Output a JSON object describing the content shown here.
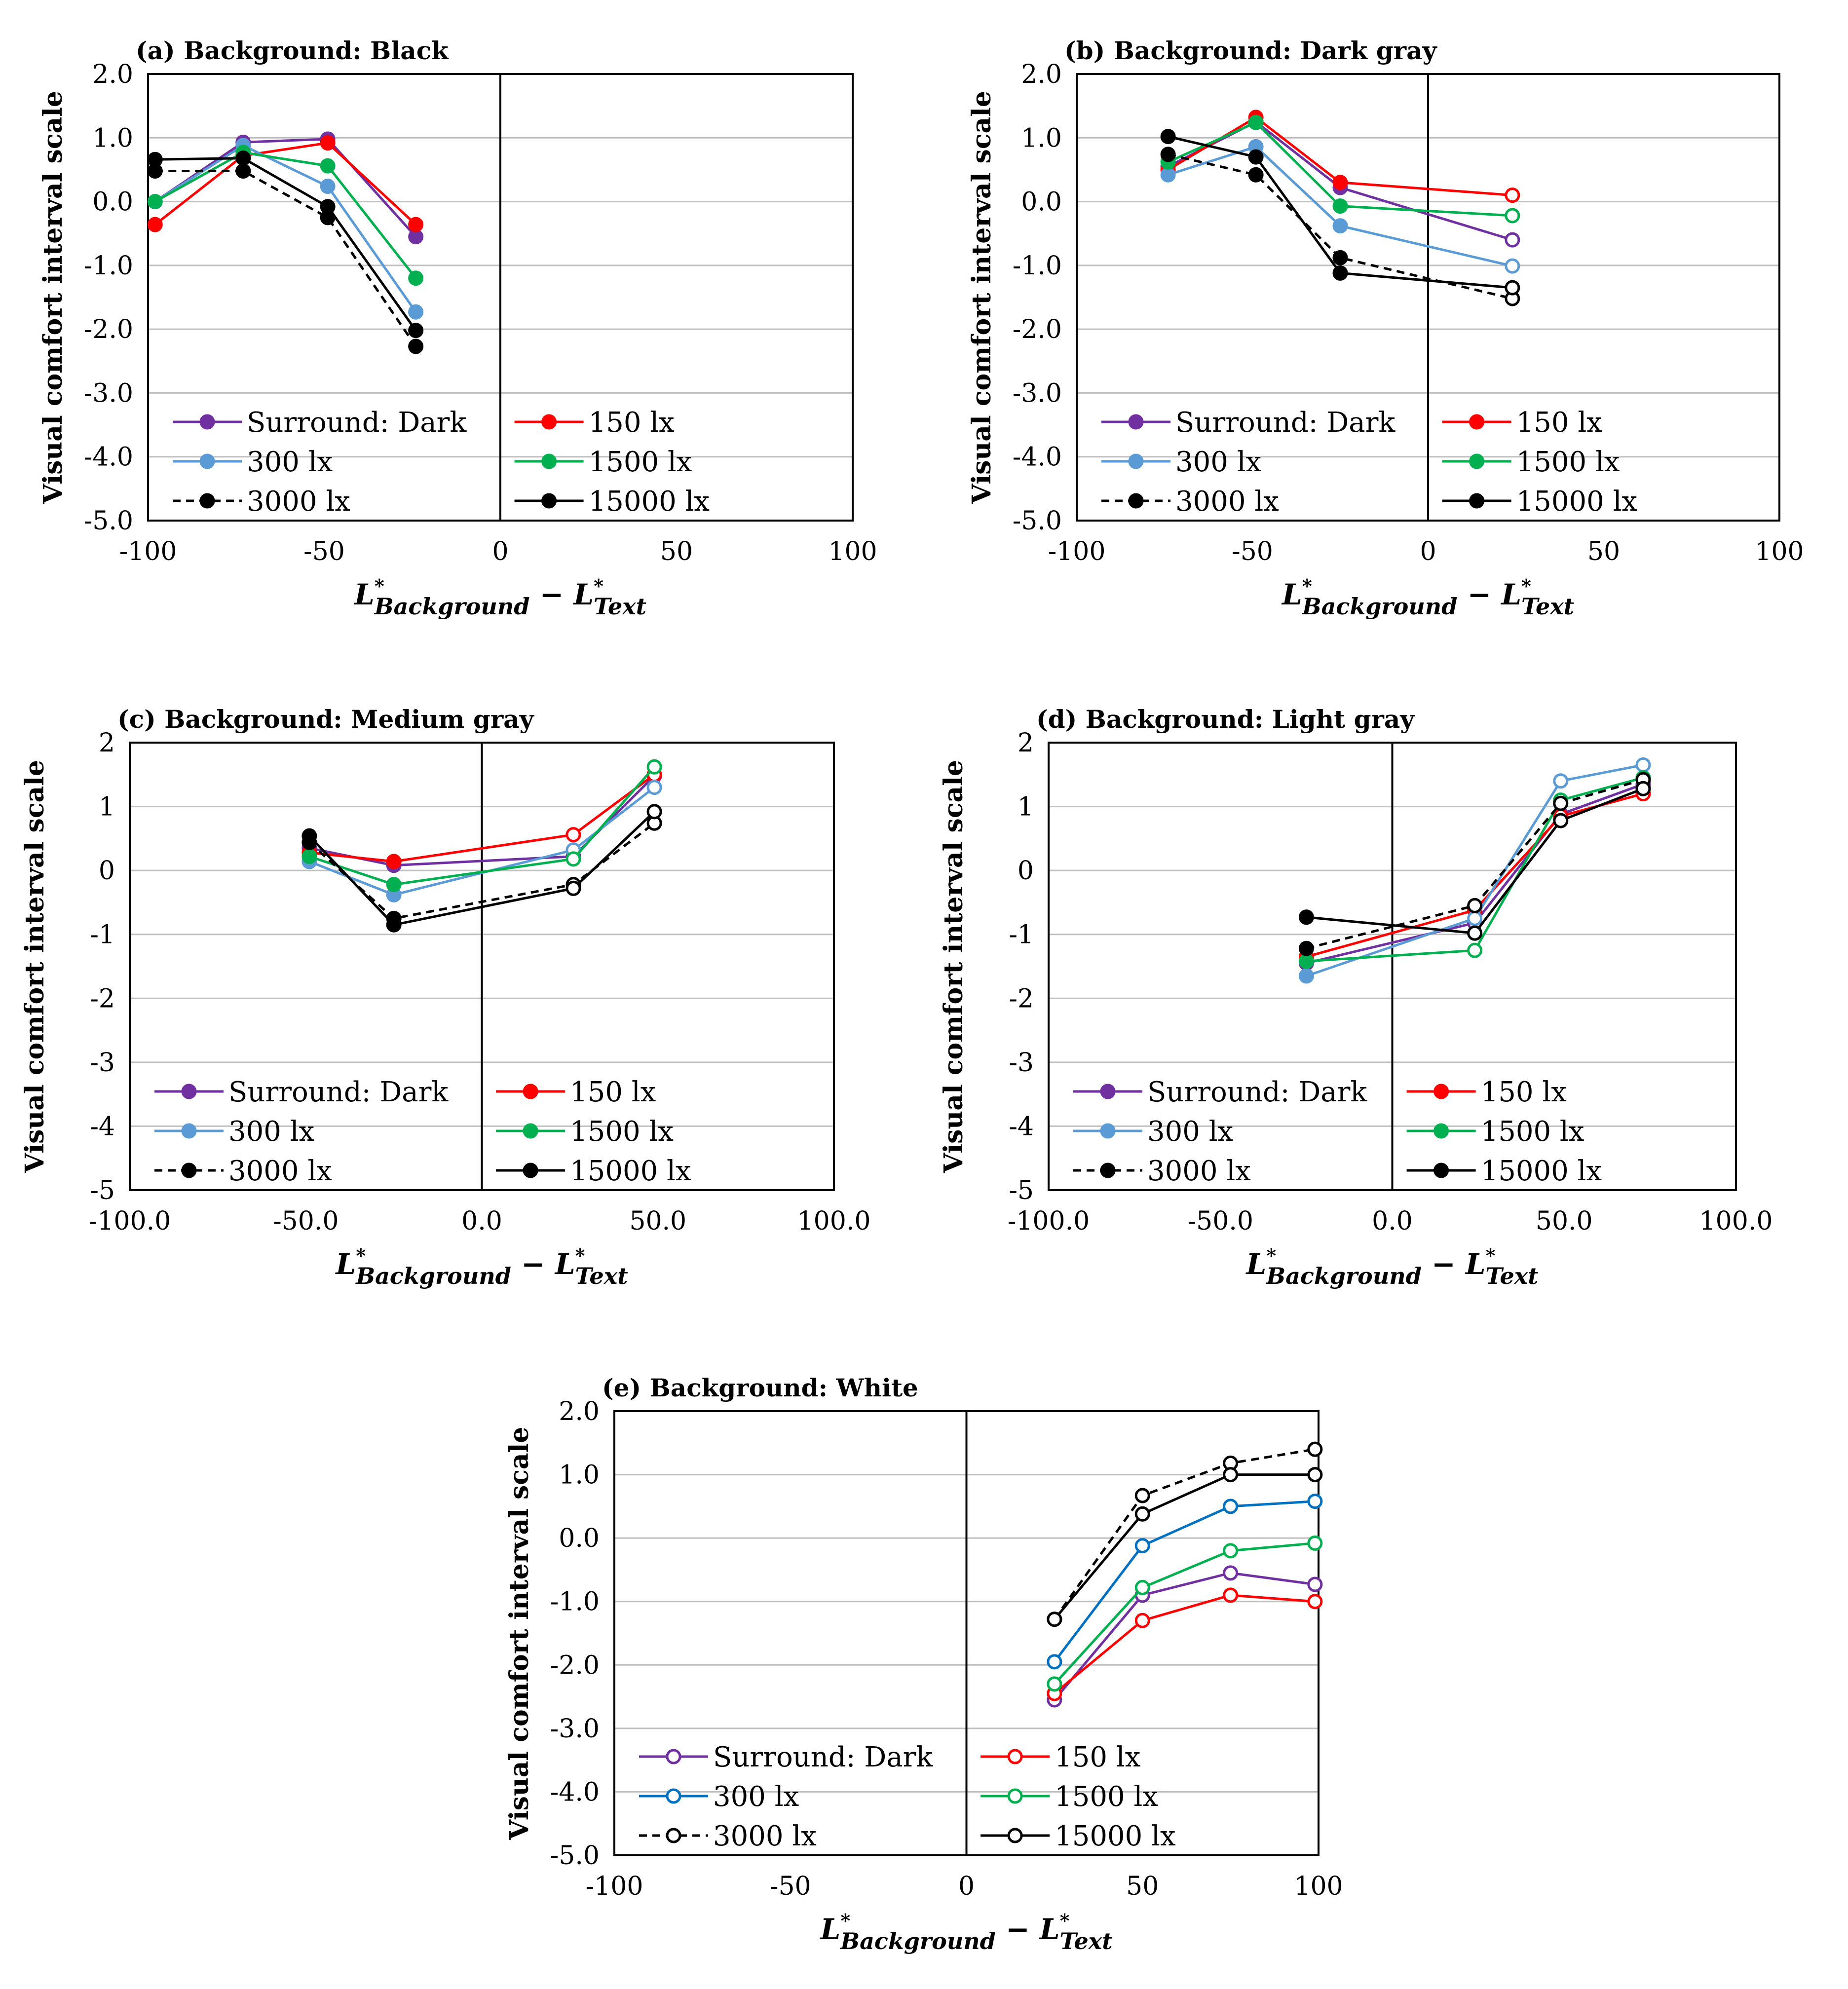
{
  "figure": {
    "x_label_main": "L",
    "x_label_sup": "*",
    "x_label_sub1": "Background",
    "x_label_minus": " − L",
    "x_label_sub2": "Text"
  },
  "chart_data": [
    {
      "type": "line",
      "panel": "a",
      "title": "(a) Background:  Black",
      "ylabel": "Visual comfort interval scale",
      "xlim": [
        -100,
        100
      ],
      "ylim": [
        -5,
        2
      ],
      "xticks": [
        "-100",
        "-50",
        "0",
        "50",
        "100"
      ],
      "yticks": [
        "2.0",
        "1.0",
        "0.0",
        "-1.0",
        "-2.0",
        "-3.0",
        "-4.0",
        "-5.0"
      ],
      "series": [
        {
          "name": "Surround: Dark",
          "color": "#7030A0",
          "dashed": false,
          "x": [
            -98,
            -73,
            -49,
            -24
          ],
          "y": [
            0.0,
            0.93,
            0.98,
            -0.55
          ],
          "hollow_from": 99
        },
        {
          "name": "150 lx",
          "color": "#FF0000",
          "dashed": false,
          "x": [
            -98,
            -73,
            -49,
            -24
          ],
          "y": [
            -0.36,
            0.72,
            0.92,
            -0.36
          ],
          "hollow_from": 99
        },
        {
          "name": "300 lx",
          "color": "#5B9BD5",
          "dashed": false,
          "x": [
            -98,
            -73,
            -49,
            -24
          ],
          "y": [
            0.0,
            0.88,
            0.24,
            -1.73
          ],
          "hollow_from": 99
        },
        {
          "name": "1500 lx",
          "color": "#00B050",
          "dashed": false,
          "x": [
            -98,
            -73,
            -49,
            -24
          ],
          "y": [
            0.0,
            0.77,
            0.56,
            -1.2
          ],
          "hollow_from": 99
        },
        {
          "name": "3000 lx",
          "color": "#000000",
          "dashed": true,
          "x": [
            -98,
            -73,
            -49,
            -24
          ],
          "y": [
            0.48,
            0.48,
            -0.25,
            -2.27
          ],
          "hollow_from": 99
        },
        {
          "name": "15000 lx",
          "color": "#000000",
          "dashed": false,
          "x": [
            -98,
            -73,
            -49,
            -24
          ],
          "y": [
            0.66,
            0.68,
            -0.08,
            -2.02
          ],
          "hollow_from": 99
        }
      ]
    },
    {
      "type": "line",
      "panel": "b",
      "title": "(b) Background:  Dark gray",
      "ylabel": "Visual comfort interval scale",
      "xlim": [
        -100,
        100
      ],
      "ylim": [
        -5,
        2
      ],
      "xticks": [
        "-100",
        "-50",
        "0",
        "50",
        "100"
      ],
      "yticks": [
        "2.0",
        "1.0",
        "0.0",
        "-1.0",
        "-2.0",
        "-3.0",
        "-4.0",
        "-5.0"
      ],
      "series": [
        {
          "name": "Surround: Dark",
          "color": "#7030A0",
          "dashed": false,
          "x": [
            -74,
            -49,
            -25,
            24
          ],
          "y": [
            0.55,
            1.25,
            0.22,
            -0.6
          ],
          "hollow_from": 3
        },
        {
          "name": "150 lx",
          "color": "#FF0000",
          "dashed": false,
          "x": [
            -74,
            -49,
            -25,
            24
          ],
          "y": [
            0.5,
            1.32,
            0.3,
            0.1
          ],
          "hollow_from": 3
        },
        {
          "name": "300 lx",
          "color": "#5B9BD5",
          "dashed": false,
          "x": [
            -74,
            -49,
            -25,
            24
          ],
          "y": [
            0.42,
            0.86,
            -0.38,
            -1.01
          ],
          "hollow_from": 3
        },
        {
          "name": "1500 lx",
          "color": "#00B050",
          "dashed": false,
          "x": [
            -74,
            -49,
            -25,
            24
          ],
          "y": [
            0.62,
            1.24,
            -0.07,
            -0.22
          ],
          "hollow_from": 3
        },
        {
          "name": "3000 lx",
          "color": "#000000",
          "dashed": true,
          "x": [
            -74,
            -49,
            -25,
            24
          ],
          "y": [
            0.74,
            0.42,
            -0.88,
            -1.52
          ],
          "hollow_from": 3
        },
        {
          "name": "15000 lx",
          "color": "#000000",
          "dashed": false,
          "x": [
            -74,
            -49,
            -25,
            24
          ],
          "y": [
            1.02,
            0.7,
            -1.12,
            -1.35
          ],
          "hollow_from": 3
        }
      ]
    },
    {
      "type": "line",
      "panel": "c",
      "title": "(c) Background:  Medium gray",
      "ylabel": "Visual comfort interval scale",
      "xlim": [
        -100,
        100
      ],
      "ylim": [
        -5,
        2
      ],
      "xticks": [
        "-100.0",
        "-50.0",
        "0.0",
        "50.0",
        "100.0"
      ],
      "yticks": [
        "2",
        "1",
        "0",
        "-1",
        "-2",
        "-3",
        "-4",
        "-5"
      ],
      "series": [
        {
          "name": "Surround: Dark",
          "color": "#7030A0",
          "dashed": false,
          "x": [
            -49,
            -25,
            26,
            49
          ],
          "y": [
            0.35,
            0.08,
            0.22,
            1.48
          ],
          "hollow_from": 2
        },
        {
          "name": "150 lx",
          "color": "#FF0000",
          "dashed": false,
          "x": [
            -49,
            -25,
            26,
            49
          ],
          "y": [
            0.28,
            0.14,
            0.56,
            1.5
          ],
          "hollow_from": 2
        },
        {
          "name": "300 lx",
          "color": "#5B9BD5",
          "dashed": false,
          "x": [
            -49,
            -25,
            26,
            49
          ],
          "y": [
            0.14,
            -0.38,
            0.32,
            1.3
          ],
          "hollow_from": 2
        },
        {
          "name": "1500 lx",
          "color": "#00B050",
          "dashed": false,
          "x": [
            -49,
            -25,
            26,
            49
          ],
          "y": [
            0.22,
            -0.22,
            0.18,
            1.62
          ],
          "hollow_from": 2
        },
        {
          "name": "3000 lx",
          "color": "#000000",
          "dashed": true,
          "x": [
            -49,
            -25,
            26,
            49
          ],
          "y": [
            0.44,
            -0.75,
            -0.22,
            0.74
          ],
          "hollow_from": 2
        },
        {
          "name": "15000 lx",
          "color": "#000000",
          "dashed": false,
          "x": [
            -49,
            -25,
            26,
            49
          ],
          "y": [
            0.54,
            -0.85,
            -0.28,
            0.92
          ],
          "hollow_from": 2
        }
      ]
    },
    {
      "type": "line",
      "panel": "d",
      "title": "(d) Background:  Light gray",
      "ylabel": "Visual comfort interval scale",
      "xlim": [
        -100,
        100
      ],
      "ylim": [
        -5,
        2
      ],
      "xticks": [
        "-100.0",
        "-50.0",
        "0.0",
        "50.0",
        "100.0"
      ],
      "yticks": [
        "2",
        "1",
        "0",
        "-1",
        "-2",
        "-3",
        "-4",
        "-5"
      ],
      "series": [
        {
          "name": "Surround: Dark",
          "color": "#7030A0",
          "dashed": false,
          "x": [
            -25,
            24,
            49,
            73
          ],
          "y": [
            -1.45,
            -0.82,
            0.88,
            1.35
          ],
          "hollow_from": 1
        },
        {
          "name": "150 lx",
          "color": "#FF0000",
          "dashed": false,
          "x": [
            -25,
            24,
            49,
            73
          ],
          "y": [
            -1.35,
            -0.62,
            0.85,
            1.2
          ],
          "hollow_from": 1
        },
        {
          "name": "300 lx",
          "color": "#5B9BD5",
          "dashed": false,
          "x": [
            -25,
            24,
            49,
            73
          ],
          "y": [
            -1.65,
            -0.75,
            1.4,
            1.65
          ],
          "hollow_from": 1
        },
        {
          "name": "1500 lx",
          "color": "#00B050",
          "dashed": false,
          "x": [
            -25,
            24,
            49,
            73
          ],
          "y": [
            -1.42,
            -1.25,
            1.1,
            1.45
          ],
          "hollow_from": 1
        },
        {
          "name": "3000 lx",
          "color": "#000000",
          "dashed": true,
          "x": [
            -25,
            24,
            49,
            73
          ],
          "y": [
            -1.22,
            -0.55,
            1.05,
            1.42
          ],
          "hollow_from": 1
        },
        {
          "name": "15000 lx",
          "color": "#000000",
          "dashed": false,
          "x": [
            -25,
            24,
            49,
            73
          ],
          "y": [
            -0.73,
            -0.98,
            0.78,
            1.28
          ],
          "hollow_from": 1
        }
      ]
    },
    {
      "type": "line",
      "panel": "e",
      "title": "(e) Background:  White",
      "ylabel": "Visual comfort interval scale",
      "xlim": [
        -100,
        100
      ],
      "ylim": [
        -5,
        2
      ],
      "xticks": [
        "-100",
        "-50",
        "0",
        "50",
        "100"
      ],
      "yticks": [
        "2.0",
        "1.0",
        "0.0",
        "-1.0",
        "-2.0",
        "-3.0",
        "-4.0",
        "-5.0"
      ],
      "series": [
        {
          "name": "Surround: Dark",
          "color": "#7030A0",
          "dashed": false,
          "x": [
            25,
            50,
            75,
            99
          ],
          "y": [
            -2.55,
            -0.9,
            -0.55,
            -0.73
          ],
          "hollow_from": 0
        },
        {
          "name": "150 lx",
          "color": "#FF0000",
          "dashed": false,
          "x": [
            25,
            50,
            75,
            99
          ],
          "y": [
            -2.45,
            -1.3,
            -0.9,
            -1.0
          ],
          "hollow_from": 0
        },
        {
          "name": "300 lx",
          "color": "#0070C0",
          "dashed": false,
          "x": [
            25,
            50,
            75,
            99
          ],
          "y": [
            -1.95,
            -0.12,
            0.5,
            0.58
          ],
          "hollow_from": 0
        },
        {
          "name": "1500 lx",
          "color": "#00B050",
          "dashed": false,
          "x": [
            25,
            50,
            75,
            99
          ],
          "y": [
            -2.3,
            -0.78,
            -0.2,
            -0.08
          ],
          "hollow_from": 0
        },
        {
          "name": "3000 lx",
          "color": "#000000",
          "dashed": true,
          "x": [
            25,
            50,
            75,
            99
          ],
          "y": [
            -1.28,
            0.67,
            1.18,
            1.4
          ],
          "hollow_from": 0
        },
        {
          "name": "15000 lx",
          "color": "#000000",
          "dashed": false,
          "x": [
            25,
            50,
            75,
            99
          ],
          "y": [
            -1.28,
            0.38,
            1.0,
            1.0
          ],
          "hollow_from": 0
        }
      ]
    }
  ]
}
